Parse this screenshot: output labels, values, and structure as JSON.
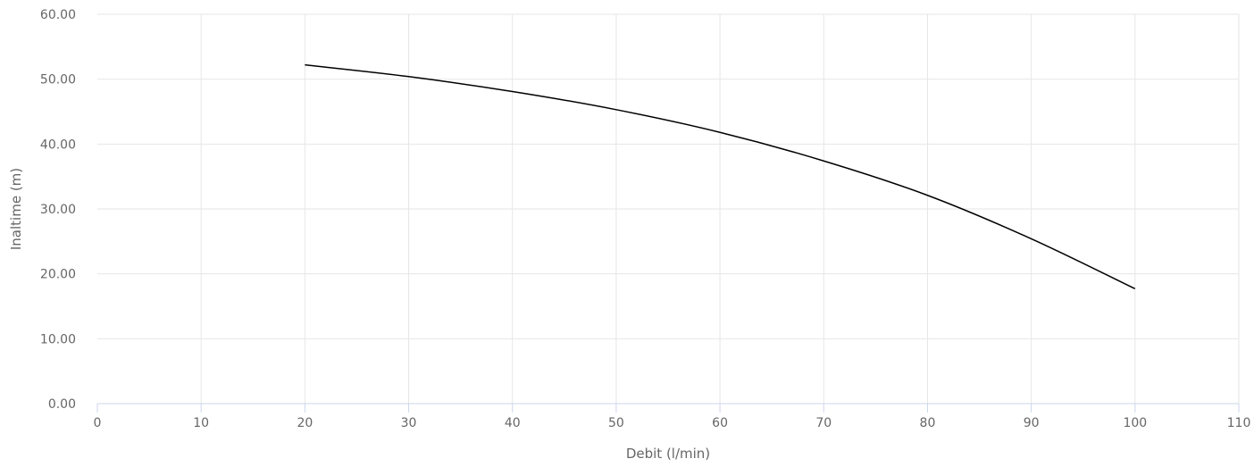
{
  "chart_data": {
    "type": "line",
    "xlabel": "Debit (l/min)",
    "ylabel": "Inaltime (m)",
    "xlim": [
      0,
      110
    ],
    "ylim": [
      0,
      60
    ],
    "x_ticks": [
      "0",
      "10",
      "20",
      "30",
      "40",
      "50",
      "60",
      "70",
      "80",
      "90",
      "100",
      "110"
    ],
    "y_ticks": [
      "0.00",
      "10.00",
      "20.00",
      "30.00",
      "40.00",
      "50.00",
      "60.00"
    ],
    "grid": true,
    "legend": "none",
    "series": [
      {
        "color": "#000000",
        "x": [
          20,
          30,
          40,
          50,
          60,
          70,
          80,
          90,
          100
        ],
        "y": [
          52.2,
          50.4,
          48.1,
          45.3,
          41.8,
          37.4,
          32.1,
          25.4,
          17.7
        ]
      }
    ]
  }
}
